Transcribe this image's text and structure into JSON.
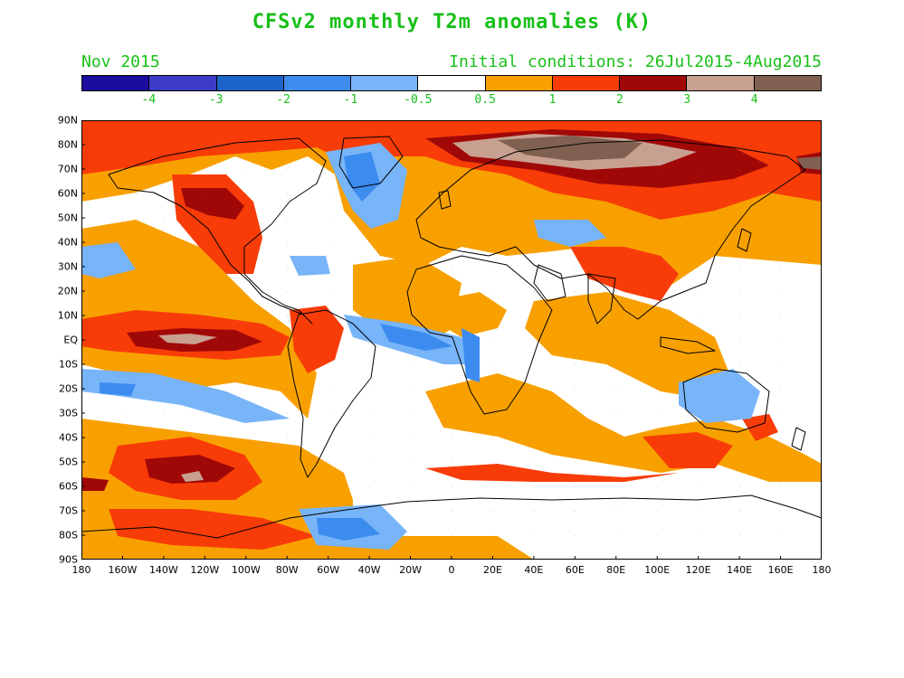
{
  "title": "CFSv2 monthly T2m anomalies (K)",
  "month_label": "Nov 2015",
  "init_label": "Initial conditions: 26Jul2015-4Aug2015",
  "colors": {
    "text_green": "#18c018",
    "scale": [
      "#1c0ca0",
      "#3c3cc8",
      "#1c64c8",
      "#3c8cf0",
      "#78b4f8",
      "#ffffff",
      "#f8a000",
      "#f83c08",
      "#a00808",
      "#c8a090",
      "#806050"
    ]
  },
  "scale_labels": [
    "-4",
    "-3",
    "-2",
    "-1",
    "-0.5",
    "0.5",
    "1",
    "2",
    "3",
    "4"
  ],
  "lat_labels": [
    "90N",
    "80N",
    "70N",
    "60N",
    "50N",
    "40N",
    "30N",
    "20N",
    "10N",
    "EQ",
    "10S",
    "20S",
    "30S",
    "40S",
    "50S",
    "60S",
    "70S",
    "80S",
    "90S"
  ],
  "lon_labels": [
    "180",
    "160W",
    "140W",
    "120W",
    "100W",
    "80W",
    "60W",
    "40W",
    "20W",
    "0",
    "20E",
    "40E",
    "60E",
    "80E",
    "100E",
    "120E",
    "140E",
    "160E",
    "180"
  ]
}
